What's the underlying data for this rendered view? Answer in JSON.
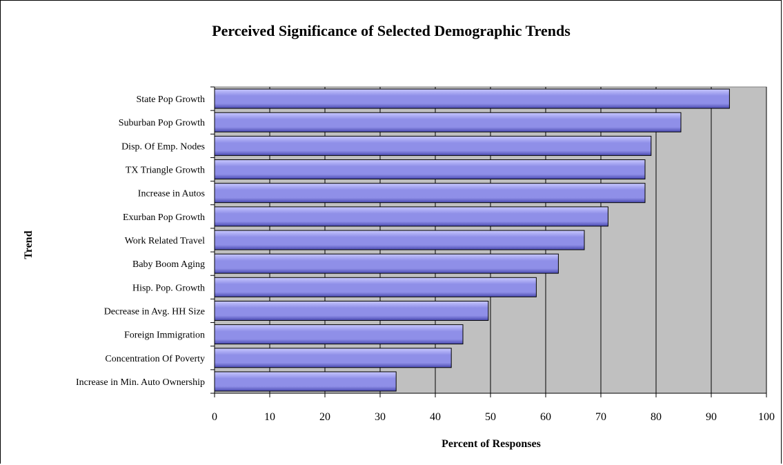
{
  "chart_data": {
    "type": "bar",
    "orientation": "horizontal",
    "title": "Perceived Significance of Selected Demographic Trends",
    "xlabel": "Percent of Responses",
    "ylabel": "Trend",
    "xlim": [
      0,
      100
    ],
    "x_ticks": [
      0,
      10,
      20,
      30,
      40,
      50,
      60,
      70,
      80,
      90,
      100
    ],
    "grid": "vertical major gridlines",
    "legend": "none",
    "categories": [
      "State Pop Growth",
      "Suburban Pop Growth",
      "Disp. Of Emp. Nodes",
      "TX Triangle Growth",
      "Increase in Autos",
      "Exurban Pop Growth",
      "Work Related Travel",
      "Baby Boom Aging",
      "Hisp. Pop. Growth",
      "Decrease in Avg. HH Size",
      "Foreign Immigration",
      "Concentration Of Poverty",
      "Increase in Min. Auto Ownership"
    ],
    "values": [
      93.3,
      84.5,
      79.1,
      78.0,
      78.0,
      71.3,
      67.0,
      62.3,
      58.3,
      49.6,
      45.0,
      42.9,
      32.9
    ],
    "colors": {
      "bar_fill_light": "#c8c8ff",
      "bar_fill_mid": "#8f8fe8",
      "bar_fill_dark": "#4a4ab0",
      "plot_background": "#c0c0c0",
      "gridline": "#000000"
    }
  }
}
